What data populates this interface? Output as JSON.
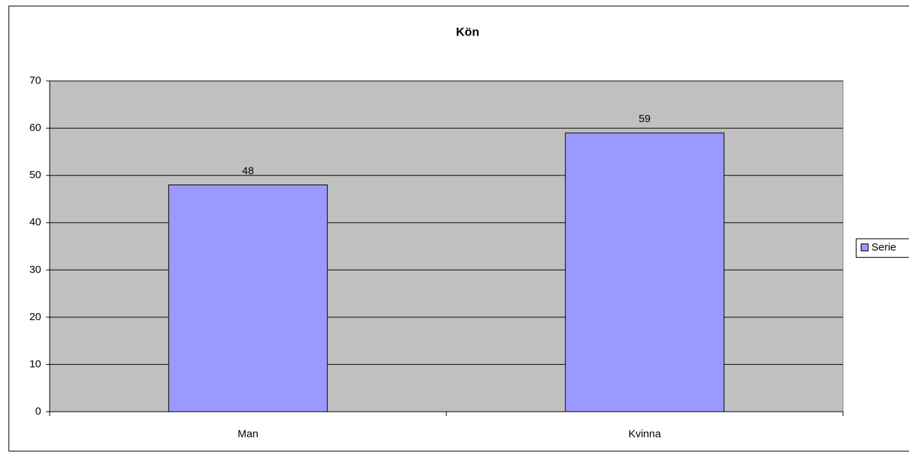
{
  "chart_data": {
    "type": "bar",
    "title": "Kön",
    "categories": [
      "Man",
      "Kvinna"
    ],
    "series": [
      {
        "name": "Serie",
        "color": "#9999ff",
        "values": [
          48,
          59
        ]
      }
    ],
    "ylim": [
      0,
      70
    ],
    "yticks": [
      0,
      10,
      20,
      30,
      40,
      50,
      60,
      70
    ],
    "grid": true,
    "legend": "right"
  }
}
